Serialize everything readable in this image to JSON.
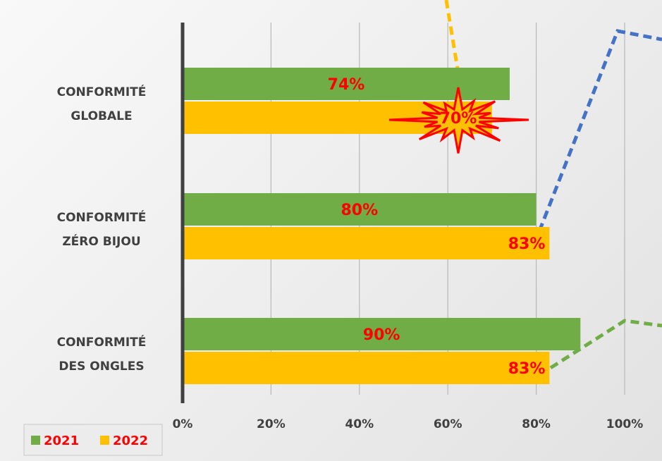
{
  "chart_data": {
    "type": "bar",
    "orientation": "horizontal",
    "categories": [
      [
        "CONFORMITÉ",
        "GLOBALE"
      ],
      [
        "CONFORMITÉ",
        "ZÉRO BIJOU"
      ],
      [
        "CONFORMITÉ",
        "DES ONGLES"
      ]
    ],
    "series": [
      {
        "name": "2021",
        "color": "#70AD47",
        "values": [
          74,
          80,
          90
        ],
        "labels": [
          "74%",
          "80%",
          "90%"
        ]
      },
      {
        "name": "2022",
        "color": "#FFC000",
        "values": [
          70,
          83,
          83
        ],
        "labels": [
          "70%",
          "83%",
          "83%"
        ]
      }
    ],
    "xlim": [
      0,
      100
    ],
    "xticks": [
      0,
      20,
      40,
      60,
      80,
      100
    ],
    "xtick_labels": [
      "0%",
      "20%",
      "40%",
      "60%",
      "80%",
      "100%"
    ],
    "grid": true,
    "legend_position": "bottom-left",
    "data_label_color": "#FF0000",
    "highlight": {
      "series": "2022",
      "category_index": 0,
      "shape": "explosion-burst",
      "fill": "#FFC000",
      "stroke": "#FF0000"
    },
    "connector_colors": [
      "#FFC000",
      "#4472C4",
      "#70AD47"
    ]
  }
}
